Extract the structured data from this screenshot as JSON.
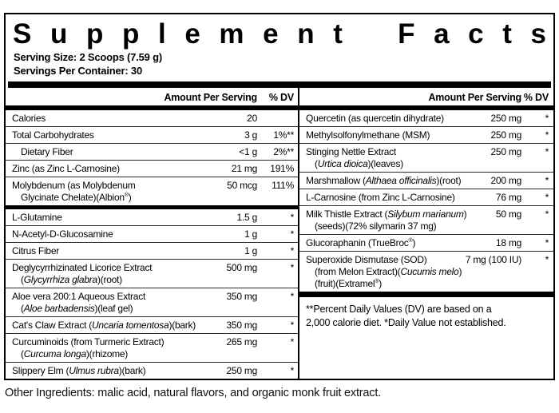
{
  "title": "Supplement Facts",
  "serving": {
    "size": "Serving Size: 2 Scoops (7.59 g)",
    "per_container": "Servings Per Container: 30"
  },
  "columns": {
    "header_amount": "Amount Per Serving",
    "header_dv": "% DV"
  },
  "left": {
    "section1": [
      {
        "lines": [
          "Calories"
        ],
        "amount": "20",
        "dv": ""
      },
      {
        "lines": [
          "Total Carbohydrates"
        ],
        "amount": "3 g",
        "dv": "1%**"
      },
      {
        "lines": [
          "Dietary Fiber"
        ],
        "indent": true,
        "amount": "<1 g",
        "dv": "2%**"
      },
      {
        "lines": [
          "Zinc (as Zinc L-Carnosine)"
        ],
        "amount": "21 mg",
        "dv": "191%"
      },
      {
        "lines": [
          "Molybdenum (as Molybdenum",
          "Glycinate Chelate)(Albion®)"
        ],
        "amount": "50 mcg",
        "dv": "111%"
      }
    ],
    "section2": [
      {
        "lines": [
          "L-Glutamine"
        ],
        "amount": "1.5 g",
        "dv": "*"
      },
      {
        "lines": [
          "N-Acetyl-D-Glucosamine"
        ],
        "amount": "1 g",
        "dv": "*"
      },
      {
        "lines": [
          "Citrus Fiber"
        ],
        "amount": "1 g",
        "dv": "*"
      },
      {
        "lines": [
          "Deglycyrrhizinated Licorice Extract",
          "(~Glycyrrhiza glabra~)(root)"
        ],
        "amount": "500 mg",
        "dv": "*"
      },
      {
        "lines": [
          "Aloe vera 200:1 Aqueous Extract",
          "(~Aloe barbadensis~)(leaf gel)"
        ],
        "amount": "350 mg",
        "dv": "*"
      },
      {
        "lines": [
          "Cat's Claw Extract (~Uncaria tomentosa~)(bark)"
        ],
        "amount": "350 mg",
        "dv": "*"
      },
      {
        "lines": [
          "Curcuminoids (from Turmeric Extract)",
          "(~Curcuma longa~)(rhizome)"
        ],
        "amount": "265 mg",
        "dv": "*"
      },
      {
        "lines": [
          "Slippery Elm (~Ulmus rubra~)(bark)"
        ],
        "amount": "250 mg",
        "dv": "*"
      }
    ]
  },
  "right": {
    "rows": [
      {
        "lines": [
          "Quercetin (as quercetin dihydrate)"
        ],
        "amount": "250 mg",
        "dv": "*"
      },
      {
        "lines": [
          "Methylsolfonylmethane (MSM)"
        ],
        "amount": "250 mg",
        "dv": "*"
      },
      {
        "lines": [
          "Stinging Nettle Extract",
          "(~Urtica dioica~)(leaves)"
        ],
        "amount": "250 mg",
        "dv": "*"
      },
      {
        "lines": [
          "Marshmallow (~Althaea officinalis~)(root)"
        ],
        "amount": "200 mg",
        "dv": "*"
      },
      {
        "lines": [
          "L-Carnosine (from Zinc L-Carnosine)"
        ],
        "amount": "76 mg",
        "dv": "*"
      },
      {
        "lines": [
          "Milk Thistle Extract (~Silybum marianum~)",
          "(seeds)(72% silymarin 37 mg)"
        ],
        "amount": "50 mg",
        "dv": "*"
      },
      {
        "lines": [
          "Glucoraphanin (TrueBroc®)"
        ],
        "amount": "18 mg",
        "dv": "*"
      },
      {
        "lines": [
          "Superoxide Dismutase (SOD)",
          "(from Melon Extract)(~Cucumis melo~)",
          "(fruit)(Extramel®)"
        ],
        "amount": "7 mg (100 IU)",
        "dv": "*"
      }
    ],
    "footnote": "**Percent Daily Values (DV) are based on a\n2,000 calorie diet. *Daily Value not established."
  },
  "other_ingredients": "Other Ingredients: malic acid, natural flavors, and organic monk fruit extract.",
  "colors": {
    "text": "#000000",
    "background": "#ffffff",
    "rule": "#2b2b2b"
  }
}
